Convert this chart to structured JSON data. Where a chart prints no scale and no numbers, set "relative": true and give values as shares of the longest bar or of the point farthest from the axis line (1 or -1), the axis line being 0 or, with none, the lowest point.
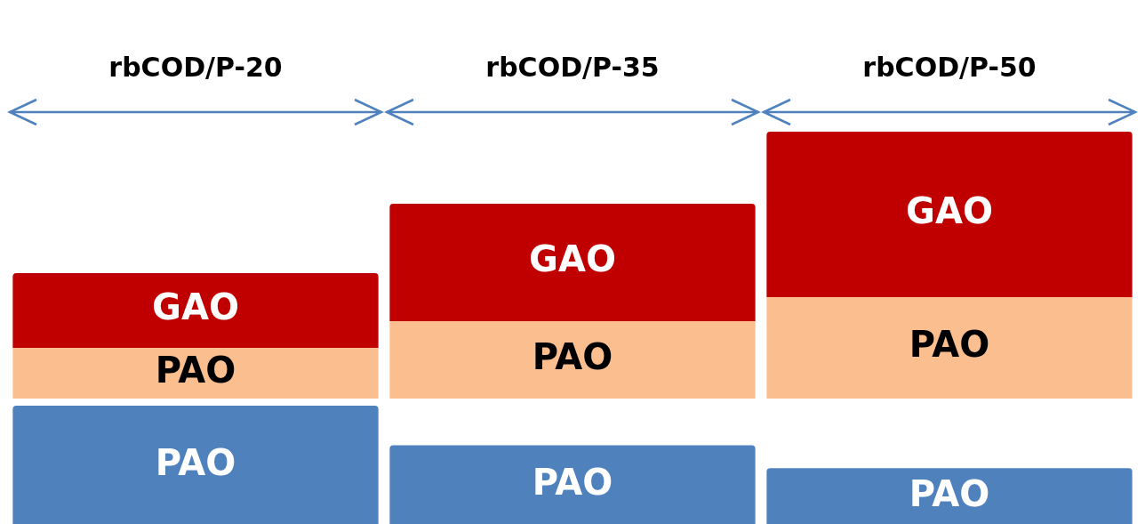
{
  "chart_data": [
    {
      "type": "bar",
      "stacked": true,
      "relative": true,
      "tick_labels": "x",
      "categories": [
        "rbCOD/P-20",
        "rbCOD/P-35",
        "rbCOD/P-50"
      ],
      "series": [
        {
          "name": "PAO",
          "color": "#fbbf8f",
          "values": [
            0.19,
            0.29,
            0.38
          ]
        },
        {
          "name": "GAO",
          "color": "#c00000",
          "values": [
            0.28,
            0.44,
            0.62
          ]
        }
      ]
    },
    {
      "type": "bar",
      "relative": true,
      "tick_labels": false,
      "categories": [
        null,
        null,
        null
      ],
      "series": [
        {
          "name": "PAO",
          "color": "#4f81bd",
          "values": [
            1,
            0.67,
            0.48
          ]
        }
      ]
    }
  ]
}
